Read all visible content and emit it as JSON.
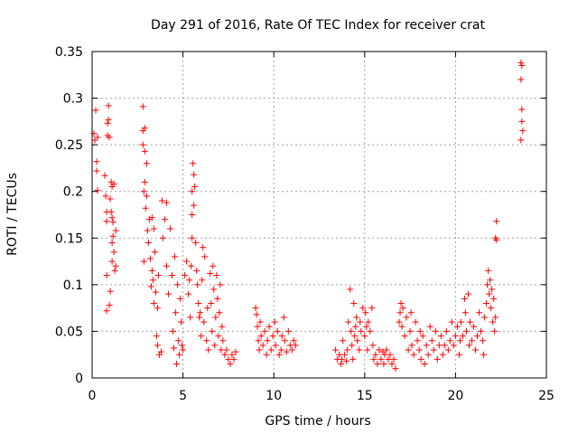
{
  "chart_data": {
    "type": "scatter",
    "title": "Day 291 of 2016, Rate Of TEC Index for receiver crat",
    "xlabel": "GPS time / hours",
    "ylabel": "ROTI / TECUs",
    "xlim": [
      0,
      25
    ],
    "ylim": [
      0,
      0.35
    ],
    "xticks": [
      0,
      5,
      10,
      15,
      20,
      25
    ],
    "xtick_labels": [
      "0",
      "5",
      "10",
      "15",
      "20",
      "25"
    ],
    "yticks": [
      0,
      0.05,
      0.1,
      0.15,
      0.2,
      0.25,
      0.3,
      0.35
    ],
    "ytick_labels": [
      "0",
      "0.05",
      "0.1",
      "0.15",
      "0.2",
      "0.25",
      "0.3",
      "0.35"
    ],
    "grid": true,
    "marker": "+",
    "color": "#ff0000",
    "series": [
      {
        "name": "ROTI",
        "points": [
          [
            0.1,
            0.262
          ],
          [
            0.15,
            0.255
          ],
          [
            0.2,
            0.287
          ],
          [
            0.25,
            0.232
          ],
          [
            0.25,
            0.222
          ],
          [
            0.3,
            0.201
          ],
          [
            0.3,
            0.258
          ],
          [
            0.7,
            0.217
          ],
          [
            0.75,
            0.195
          ],
          [
            0.8,
            0.178
          ],
          [
            0.8,
            0.168
          ],
          [
            0.8,
            0.11
          ],
          [
            0.8,
            0.072
          ],
          [
            0.85,
            0.26
          ],
          [
            0.85,
            0.273
          ],
          [
            0.9,
            0.292
          ],
          [
            0.9,
            0.277
          ],
          [
            0.95,
            0.258
          ],
          [
            0.95,
            0.078
          ],
          [
            1.0,
            0.192
          ],
          [
            1.0,
            0.093
          ],
          [
            1.05,
            0.21
          ],
          [
            1.05,
            0.178
          ],
          [
            1.1,
            0.205
          ],
          [
            1.1,
            0.172
          ],
          [
            1.1,
            0.145
          ],
          [
            1.1,
            0.125
          ],
          [
            1.15,
            0.167
          ],
          [
            1.15,
            0.152
          ],
          [
            1.2,
            0.208
          ],
          [
            1.2,
            0.135
          ],
          [
            1.25,
            0.115
          ],
          [
            1.3,
            0.158
          ],
          [
            1.3,
            0.12
          ],
          [
            2.8,
            0.291
          ],
          [
            2.8,
            0.265
          ],
          [
            2.8,
            0.25
          ],
          [
            2.85,
            0.2
          ],
          [
            2.85,
            0.125
          ],
          [
            2.9,
            0.268
          ],
          [
            2.9,
            0.243
          ],
          [
            2.9,
            0.21
          ],
          [
            2.95,
            0.182
          ],
          [
            3.0,
            0.23
          ],
          [
            3.0,
            0.195
          ],
          [
            3.05,
            0.158
          ],
          [
            3.1,
            0.145
          ],
          [
            3.15,
            0.17
          ],
          [
            3.2,
            0.128
          ],
          [
            3.25,
            0.098
          ],
          [
            3.3,
            0.172
          ],
          [
            3.3,
            0.115
          ],
          [
            3.35,
            0.105
          ],
          [
            3.4,
            0.16
          ],
          [
            3.4,
            0.08
          ],
          [
            3.45,
            0.135
          ],
          [
            3.5,
            0.092
          ],
          [
            3.55,
            0.045
          ],
          [
            3.6,
            0.075
          ],
          [
            3.6,
            0.035
          ],
          [
            3.65,
            0.11
          ],
          [
            3.7,
            0.025
          ],
          [
            3.8,
            0.028
          ],
          [
            3.85,
            0.19
          ],
          [
            3.9,
            0.15
          ],
          [
            4.0,
            0.17
          ],
          [
            4.1,
            0.12
          ],
          [
            4.1,
            0.188
          ],
          [
            4.2,
            0.09
          ],
          [
            4.3,
            0.16
          ],
          [
            4.4,
            0.11
          ],
          [
            4.45,
            0.05
          ],
          [
            4.5,
            0.032
          ],
          [
            4.55,
            0.13
          ],
          [
            4.6,
            0.07
          ],
          [
            4.65,
            0.015
          ],
          [
            4.7,
            0.1
          ],
          [
            4.75,
            0.04
          ],
          [
            4.8,
            0.025
          ],
          [
            4.85,
            0.085
          ],
          [
            4.9,
            0.06
          ],
          [
            4.95,
            0.035
          ],
          [
            5.0,
            0.03
          ],
          [
            5.1,
            0.11
          ],
          [
            5.2,
            0.125
          ],
          [
            5.3,
            0.09
          ],
          [
            5.35,
            0.105
          ],
          [
            5.4,
            0.065
          ],
          [
            5.45,
            0.12
          ],
          [
            5.5,
            0.2
          ],
          [
            5.5,
            0.175
          ],
          [
            5.5,
            0.15
          ],
          [
            5.55,
            0.23
          ],
          [
            5.6,
            0.185
          ],
          [
            5.6,
            0.218
          ],
          [
            5.65,
            0.205
          ],
          [
            5.7,
            0.145
          ],
          [
            5.75,
            0.115
          ],
          [
            5.8,
            0.1
          ],
          [
            5.85,
            0.08
          ],
          [
            5.9,
            0.065
          ],
          [
            5.95,
            0.07
          ],
          [
            6.0,
            0.045
          ],
          [
            6.05,
            0.105
          ],
          [
            6.1,
            0.14
          ],
          [
            6.15,
            0.06
          ],
          [
            6.2,
            0.13
          ],
          [
            6.3,
            0.04
          ],
          [
            6.35,
            0.075
          ],
          [
            6.4,
            0.03
          ],
          [
            6.5,
            0.112
          ],
          [
            6.55,
            0.08
          ],
          [
            6.6,
            0.05
          ],
          [
            6.65,
            0.12
          ],
          [
            6.7,
            0.095
          ],
          [
            6.75,
            0.035
          ],
          [
            6.8,
            0.065
          ],
          [
            6.85,
            0.11
          ],
          [
            6.9,
            0.085
          ],
          [
            6.95,
            0.045
          ],
          [
            7.0,
            0.07
          ],
          [
            7.05,
            0.1
          ],
          [
            7.1,
            0.03
          ],
          [
            7.15,
            0.055
          ],
          [
            7.2,
            0.04
          ],
          [
            7.3,
            0.025
          ],
          [
            7.4,
            0.03
          ],
          [
            7.5,
            0.02
          ],
          [
            7.6,
            0.015
          ],
          [
            7.7,
            0.025
          ],
          [
            7.8,
            0.02
          ],
          [
            7.9,
            0.028
          ],
          [
            9.0,
            0.075
          ],
          [
            9.05,
            0.068
          ],
          [
            9.1,
            0.055
          ],
          [
            9.15,
            0.04
          ],
          [
            9.2,
            0.03
          ],
          [
            9.25,
            0.06
          ],
          [
            9.3,
            0.045
          ],
          [
            9.4,
            0.035
          ],
          [
            9.5,
            0.05
          ],
          [
            9.6,
            0.025
          ],
          [
            9.65,
            0.04
          ],
          [
            9.75,
            0.055
          ],
          [
            9.85,
            0.03
          ],
          [
            9.95,
            0.045
          ],
          [
            10.05,
            0.06
          ],
          [
            10.1,
            0.035
          ],
          [
            10.2,
            0.05
          ],
          [
            10.3,
            0.025
          ],
          [
            10.4,
            0.03
          ],
          [
            10.45,
            0.045
          ],
          [
            10.55,
            0.065
          ],
          [
            10.6,
            0.04
          ],
          [
            10.7,
            0.028
          ],
          [
            10.8,
            0.05
          ],
          [
            10.9,
            0.035
          ],
          [
            11.0,
            0.03
          ],
          [
            11.1,
            0.04
          ],
          [
            11.2,
            0.035
          ],
          [
            13.4,
            0.03
          ],
          [
            13.5,
            0.02
          ],
          [
            13.6,
            0.025
          ],
          [
            13.7,
            0.015
          ],
          [
            13.75,
            0.02
          ],
          [
            13.8,
            0.04
          ],
          [
            13.9,
            0.025
          ],
          [
            14.0,
            0.018
          ],
          [
            14.05,
            0.03
          ],
          [
            14.1,
            0.06
          ],
          [
            14.2,
            0.095
          ],
          [
            14.25,
            0.05
          ],
          [
            14.3,
            0.035
          ],
          [
            14.35,
            0.02
          ],
          [
            14.4,
            0.08
          ],
          [
            14.45,
            0.045
          ],
          [
            14.5,
            0.055
          ],
          [
            14.55,
            0.065
          ],
          [
            14.6,
            0.04
          ],
          [
            14.7,
            0.03
          ],
          [
            14.75,
            0.06
          ],
          [
            14.8,
            0.05
          ],
          [
            14.9,
            0.075
          ],
          [
            15.0,
            0.045
          ],
          [
            15.05,
            0.07
          ],
          [
            15.1,
            0.055
          ],
          [
            15.15,
            0.03
          ],
          [
            15.2,
            0.06
          ],
          [
            15.3,
            0.05
          ],
          [
            15.4,
            0.075
          ],
          [
            15.45,
            0.035
          ],
          [
            15.5,
            0.02
          ],
          [
            15.6,
            0.025
          ],
          [
            15.7,
            0.015
          ],
          [
            15.8,
            0.03
          ],
          [
            15.9,
            0.02
          ],
          [
            16.0,
            0.028
          ],
          [
            16.05,
            0.015
          ],
          [
            16.1,
            0.025
          ],
          [
            16.2,
            0.03
          ],
          [
            16.3,
            0.02
          ],
          [
            16.4,
            0.025
          ],
          [
            16.5,
            0.015
          ],
          [
            16.6,
            0.02
          ],
          [
            16.7,
            0.01
          ],
          [
            16.9,
            0.06
          ],
          [
            16.95,
            0.07
          ],
          [
            17.0,
            0.08
          ],
          [
            17.05,
            0.055
          ],
          [
            17.1,
            0.075
          ],
          [
            17.2,
            0.045
          ],
          [
            17.3,
            0.065
          ],
          [
            17.4,
            0.03
          ],
          [
            17.5,
            0.05
          ],
          [
            17.55,
            0.07
          ],
          [
            17.6,
            0.035
          ],
          [
            17.7,
            0.025
          ],
          [
            17.8,
            0.06
          ],
          [
            17.9,
            0.04
          ],
          [
            18.0,
            0.03
          ],
          [
            18.05,
            0.05
          ],
          [
            18.1,
            0.02
          ],
          [
            18.2,
            0.045
          ],
          [
            18.3,
            0.015
          ],
          [
            18.4,
            0.035
          ],
          [
            18.5,
            0.025
          ],
          [
            18.6,
            0.055
          ],
          [
            18.7,
            0.04
          ],
          [
            18.8,
            0.03
          ],
          [
            18.9,
            0.05
          ],
          [
            19.0,
            0.02
          ],
          [
            19.1,
            0.035
          ],
          [
            19.2,
            0.045
          ],
          [
            19.3,
            0.025
          ],
          [
            19.4,
            0.035
          ],
          [
            19.5,
            0.05
          ],
          [
            19.6,
            0.03
          ],
          [
            19.7,
            0.04
          ],
          [
            19.8,
            0.06
          ],
          [
            19.9,
            0.035
          ],
          [
            20.0,
            0.045
          ],
          [
            20.1,
            0.055
          ],
          [
            20.2,
            0.025
          ],
          [
            20.25,
            0.04
          ],
          [
            20.3,
            0.06
          ],
          [
            20.4,
            0.045
          ],
          [
            20.5,
            0.085
          ],
          [
            20.55,
            0.07
          ],
          [
            20.6,
            0.05
          ],
          [
            20.7,
            0.09
          ],
          [
            20.75,
            0.035
          ],
          [
            20.8,
            0.06
          ],
          [
            20.9,
            0.04
          ],
          [
            21.0,
            0.055
          ],
          [
            21.1,
            0.03
          ],
          [
            21.2,
            0.045
          ],
          [
            21.3,
            0.07
          ],
          [
            21.4,
            0.05
          ],
          [
            21.5,
            0.04
          ],
          [
            21.55,
            0.025
          ],
          [
            21.6,
            0.065
          ],
          [
            21.7,
            0.08
          ],
          [
            21.75,
            0.1
          ],
          [
            21.8,
            0.115
          ],
          [
            21.85,
            0.09
          ],
          [
            21.9,
            0.105
          ],
          [
            21.95,
            0.075
          ],
          [
            22.0,
            0.095
          ],
          [
            22.05,
            0.06
          ],
          [
            22.1,
            0.085
          ],
          [
            22.15,
            0.05
          ],
          [
            22.2,
            0.065
          ],
          [
            22.2,
            0.15
          ],
          [
            22.25,
            0.168
          ],
          [
            22.25,
            0.148
          ],
          [
            23.6,
            0.338
          ],
          [
            23.6,
            0.32
          ],
          [
            23.65,
            0.288
          ],
          [
            23.65,
            0.275
          ],
          [
            23.7,
            0.265
          ],
          [
            23.6,
            0.255
          ],
          [
            23.65,
            0.335
          ]
        ]
      }
    ]
  }
}
